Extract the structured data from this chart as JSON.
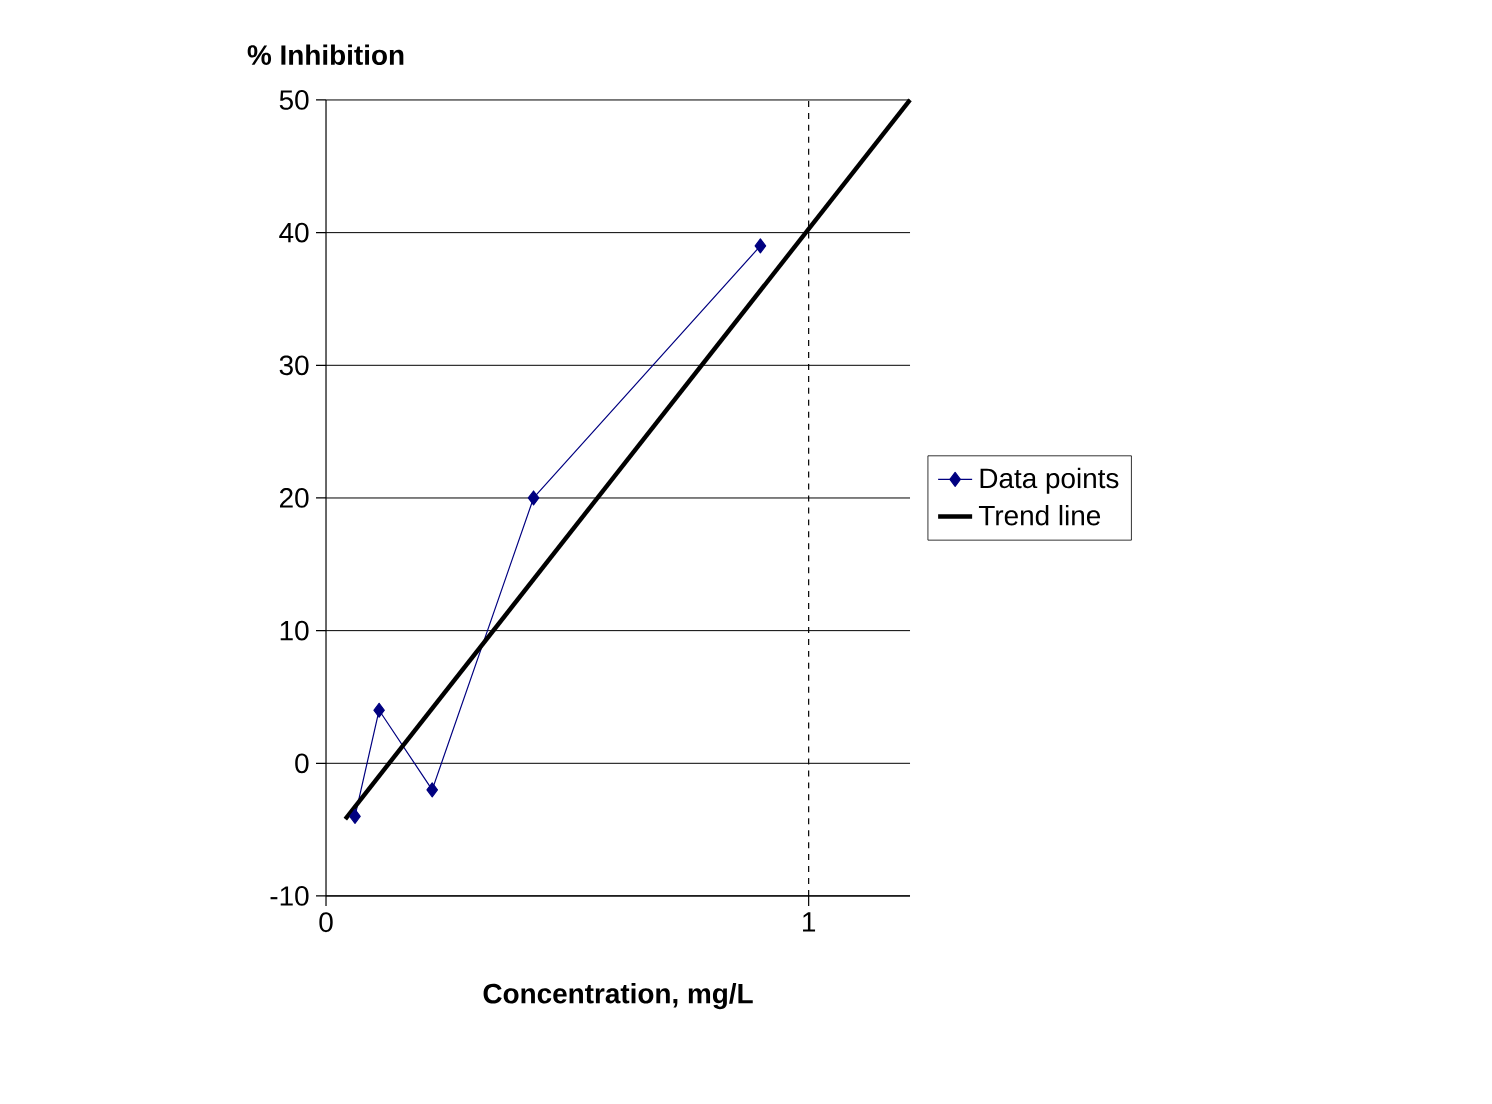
{
  "chart_data": {
    "type": "line",
    "xlabel": "Concentration, mg/L",
    "ylabel": "% Inhibition",
    "xlim": [
      0,
      1.21
    ],
    "xticks": [
      0,
      1
    ],
    "ylim": [
      -10,
      50
    ],
    "yticks": [
      -10,
      0,
      10,
      20,
      30,
      40,
      50
    ],
    "grid": "y",
    "legend": "right",
    "series": [
      {
        "name": "Data points",
        "color": "#000080",
        "marker": "diamond",
        "line_style": "solid",
        "x": [
          0.06,
          0.11,
          0.22,
          0.43,
          0.9
        ],
        "values": [
          -4,
          4,
          -2,
          20,
          39
        ]
      },
      {
        "name": "Trend line",
        "color": "#000000",
        "marker": "none",
        "line_style": "solid",
        "x": [
          0.04,
          1.21
        ],
        "values": [
          -4.2,
          50
        ]
      }
    ],
    "ref_lines": [
      {
        "axis": "x",
        "value": 1,
        "line_style": "dashed",
        "color": "#000000"
      }
    ]
  }
}
